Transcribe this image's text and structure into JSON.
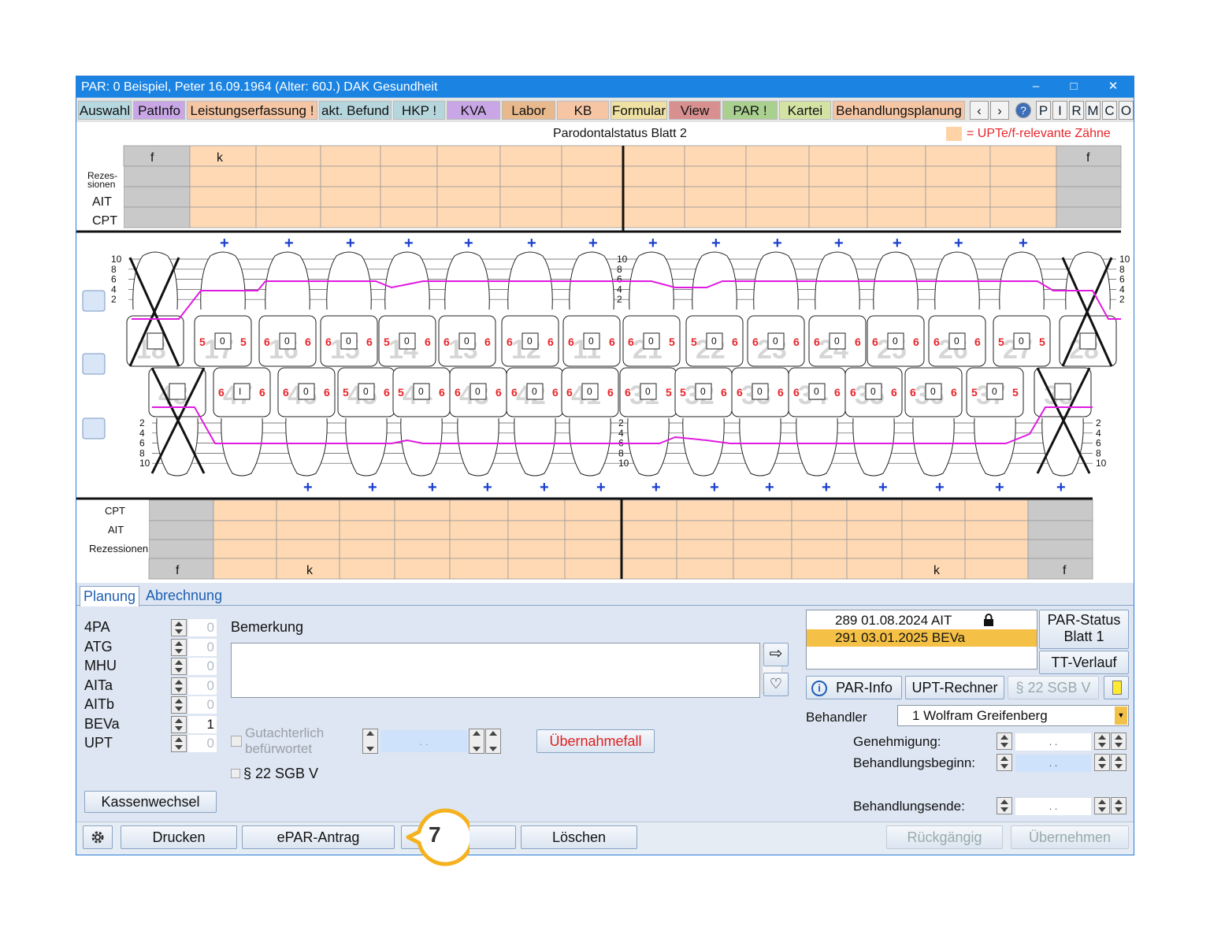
{
  "window": {
    "title": "PAR: 0  Beispiel, Peter  16.09.1964 (Alter: 60J.)  DAK Gesundheit",
    "minimize": "–",
    "maximize": "□",
    "close": "✕"
  },
  "menu": {
    "tabs": [
      {
        "label": "Auswahl",
        "color": "#b6d8e0"
      },
      {
        "label": "PatInfo",
        "color": "#c9a7e6"
      },
      {
        "label": "Leistungserfassung !",
        "color": "#f6c6a4"
      },
      {
        "label": "akt. Befund",
        "color": "#b6d6dd"
      },
      {
        "label": "HKP !",
        "color": "#b6d6dd"
      },
      {
        "label": "KVA",
        "color": "#c9a7e6"
      },
      {
        "label": "Labor",
        "color": "#e8b98c"
      },
      {
        "label": "KB",
        "color": "#f6c6a4"
      },
      {
        "label": "Formular",
        "color": "#efe1a4"
      },
      {
        "label": "View",
        "color": "#d7908f"
      },
      {
        "label": "PAR !",
        "color": "#a9d08e"
      },
      {
        "label": "Kartei",
        "color": "#d4e3a4"
      },
      {
        "label": "Behandlungsplanung",
        "color": "#f6c6a4"
      }
    ],
    "nav_left": "‹",
    "nav_right": "›",
    "help": "?",
    "letters": [
      "P",
      "I",
      "R",
      "M",
      "C",
      "O"
    ]
  },
  "chart": {
    "title": "Parodontalstatus Blatt 2",
    "legend": "= UPTe/f-relevante Zähne",
    "legend_color": "#ffd3a6",
    "upper": {
      "markers": [
        "f",
        "k",
        "f"
      ],
      "rows": [
        "Rezes-\nsionen",
        "AIT",
        "CPT"
      ]
    },
    "lower": {
      "markers": [
        "f",
        "k",
        "k",
        "f"
      ],
      "rows": [
        "CPT",
        "AIT",
        "Rezessionen"
      ]
    },
    "upper_teeth": [
      {
        "num": "18",
        "v": [
          "",
          "",
          ""
        ]
      },
      {
        "num": "17",
        "v": [
          "5",
          "0",
          "5"
        ]
      },
      {
        "num": "16",
        "v": [
          "6",
          "0",
          "6"
        ]
      },
      {
        "num": "15",
        "v": [
          "6",
          "0",
          "6"
        ]
      },
      {
        "num": "14",
        "v": [
          "5",
          "0",
          "6"
        ]
      },
      {
        "num": "13",
        "v": [
          "6",
          "0",
          "6"
        ]
      },
      {
        "num": "12",
        "v": [
          "6",
          "0",
          "6"
        ]
      },
      {
        "num": "11",
        "v": [
          "6",
          "0",
          "6"
        ]
      },
      {
        "num": "21",
        "v": [
          "6",
          "0",
          "5"
        ]
      },
      {
        "num": "22",
        "v": [
          "5",
          "0",
          "6"
        ]
      },
      {
        "num": "23",
        "v": [
          "6",
          "0",
          "6"
        ]
      },
      {
        "num": "24",
        "v": [
          "6",
          "0",
          "6"
        ]
      },
      {
        "num": "25",
        "v": [
          "6",
          "0",
          "6"
        ]
      },
      {
        "num": "26",
        "v": [
          "6",
          "0",
          "6"
        ]
      },
      {
        "num": "27",
        "v": [
          "5",
          "0",
          "5"
        ]
      },
      {
        "num": "28",
        "v": [
          "",
          "",
          ""
        ]
      }
    ],
    "lower_teeth": [
      {
        "num": "48",
        "v": [
          "",
          "",
          ""
        ]
      },
      {
        "num": "47",
        "v": [
          "6",
          "I",
          "6"
        ]
      },
      {
        "num": "46",
        "v": [
          "6",
          "0",
          "6"
        ]
      },
      {
        "num": "45",
        "v": [
          "5",
          "0",
          "6"
        ]
      },
      {
        "num": "44",
        "v": [
          "5",
          "0",
          "6"
        ]
      },
      {
        "num": "43",
        "v": [
          "6",
          "0",
          "6"
        ]
      },
      {
        "num": "42",
        "v": [
          "6",
          "0",
          "6"
        ]
      },
      {
        "num": "41",
        "v": [
          "6",
          "0",
          "6"
        ]
      },
      {
        "num": "31",
        "v": [
          "6",
          "0",
          "5"
        ]
      },
      {
        "num": "32",
        "v": [
          "5",
          "0",
          "6"
        ]
      },
      {
        "num": "33",
        "v": [
          "6",
          "0",
          "6"
        ]
      },
      {
        "num": "34",
        "v": [
          "6",
          "0",
          "6"
        ]
      },
      {
        "num": "35",
        "v": [
          "6",
          "0",
          "6"
        ]
      },
      {
        "num": "36",
        "v": [
          "6",
          "0",
          "6"
        ]
      },
      {
        "num": "37",
        "v": [
          "5",
          "0",
          "5"
        ]
      },
      {
        "num": "38",
        "v": [
          "",
          "",
          ""
        ]
      }
    ],
    "scale": [
      "10",
      "8",
      "6",
      "4",
      "2"
    ],
    "plus": "+"
  },
  "tabs": {
    "planung": "Planung",
    "abrechnung": "Abrechnung"
  },
  "codes": [
    {
      "label": "4PA",
      "value": "0"
    },
    {
      "label": "ATG",
      "value": "0"
    },
    {
      "label": "MHU",
      "value": "0"
    },
    {
      "label": "AITa",
      "value": "0"
    },
    {
      "label": "AITb",
      "value": "0"
    },
    {
      "label": "BEVa",
      "value": "1"
    },
    {
      "label": "UPT",
      "value": "0"
    }
  ],
  "bemerkung": {
    "label": "Bemerkung",
    "text": ""
  },
  "gutachterlich": "Gutachterlich\nbefürwortet",
  "sgb_check": "§ 22 SGB V",
  "datefield": " .  . ",
  "uebernahmefall": "Übernahmefall",
  "kassenwechsel": "Kassenwechsel",
  "history": [
    {
      "text": "289 01.08.2024  AIT",
      "locked": true
    },
    {
      "text": "291 03.01.2025  BEVa",
      "locked": false
    }
  ],
  "buttons": {
    "par_status": "PAR-Status\nBlatt 1",
    "tt_verlauf": "TT-Verlauf",
    "par_info": "PAR-Info",
    "upt_rechner": "UPT-Rechner",
    "sgb": "§ 22 SGB V"
  },
  "behandler": {
    "label": "Behandler",
    "value": "1 Wolfram Greifenberg"
  },
  "dates": {
    "genehmigung": "Genehmigung:",
    "beginn": "Behandlungsbeginn:",
    "ende": "Behandlungsende:",
    "value": " .  . "
  },
  "bottom": {
    "drucken": "Drucken",
    "epar": "ePAR-Antrag",
    "loeschen": "Löschen",
    "rueckgaengig": "Rückgängig",
    "uebernehmen": "Übernehmen"
  },
  "callout": {
    "number": "7",
    "color": "#f5b21f"
  }
}
